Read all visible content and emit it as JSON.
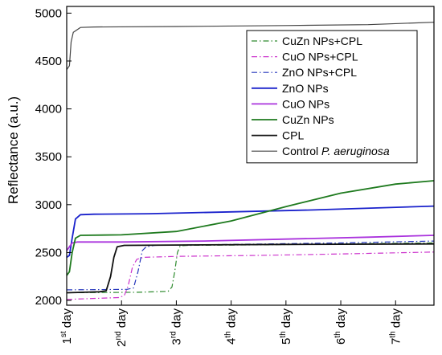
{
  "chart_data": {
    "type": "line",
    "ylabel": "Reflectance (a.u.)",
    "ylim": [
      1950,
      5070
    ],
    "xlim": [
      0,
      6.7
    ],
    "yticks": [
      2000,
      2500,
      3000,
      3500,
      4000,
      4500,
      5000
    ],
    "xticks": [
      {
        "value": 0,
        "num": "1",
        "sup": "st",
        "word": "day"
      },
      {
        "value": 1,
        "num": "2",
        "sup": "nd",
        "word": "day"
      },
      {
        "value": 2,
        "num": "3",
        "sup": "rd",
        "word": "day"
      },
      {
        "value": 3,
        "num": "4",
        "sup": "th",
        "word": "day"
      },
      {
        "value": 4,
        "num": "5",
        "sup": "th",
        "word": "day"
      },
      {
        "value": 5,
        "num": "6",
        "sup": "th",
        "word": "day"
      },
      {
        "value": 6,
        "num": "7",
        "sup": "th",
        "word": "day"
      }
    ],
    "legend_position": "top-right",
    "series": [
      {
        "name": "CuZn NPs+CPL",
        "italic": "",
        "color": "#2e8b2e",
        "dash": "dashdot",
        "width": 1.2,
        "points": [
          [
            0,
            2080
          ],
          [
            1.3,
            2085
          ],
          [
            1.85,
            2095
          ],
          [
            1.92,
            2140
          ],
          [
            1.97,
            2300
          ],
          [
            2.02,
            2500
          ],
          [
            2.07,
            2570
          ],
          [
            2.2,
            2575
          ],
          [
            3.5,
            2580
          ],
          [
            5.0,
            2590
          ],
          [
            6.7,
            2600
          ]
        ]
      },
      {
        "name": "CuO NPs+CPL",
        "italic": "",
        "color": "#cc33cc",
        "dash": "dashdot",
        "width": 1.2,
        "points": [
          [
            0,
            2010
          ],
          [
            0.95,
            2030
          ],
          [
            1.05,
            2050
          ],
          [
            1.12,
            2150
          ],
          [
            1.2,
            2350
          ],
          [
            1.28,
            2430
          ],
          [
            1.4,
            2450
          ],
          [
            2.0,
            2460
          ],
          [
            3.5,
            2470
          ],
          [
            5.0,
            2485
          ],
          [
            6.7,
            2505
          ]
        ]
      },
      {
        "name": "ZnO NPs+CPL",
        "italic": "",
        "color": "#2233bb",
        "dash": "dashdot",
        "width": 1.2,
        "points": [
          [
            0,
            2110
          ],
          [
            1.1,
            2115
          ],
          [
            1.22,
            2130
          ],
          [
            1.3,
            2300
          ],
          [
            1.38,
            2520
          ],
          [
            1.45,
            2560
          ],
          [
            1.6,
            2575
          ],
          [
            3.0,
            2585
          ],
          [
            5.0,
            2600
          ],
          [
            6.7,
            2620
          ]
        ]
      },
      {
        "name": "ZnO NPs",
        "italic": "",
        "color": "#1a22cc",
        "dash": "solid",
        "width": 1.8,
        "points": [
          [
            0,
            2450
          ],
          [
            0.05,
            2470
          ],
          [
            0.1,
            2650
          ],
          [
            0.16,
            2850
          ],
          [
            0.25,
            2895
          ],
          [
            0.5,
            2900
          ],
          [
            1.5,
            2905
          ],
          [
            3.0,
            2925
          ],
          [
            4.5,
            2945
          ],
          [
            6.7,
            2985
          ]
        ]
      },
      {
        "name": "CuO NPs",
        "italic": "",
        "color": "#aa33dd",
        "dash": "solid",
        "width": 1.8,
        "points": [
          [
            0,
            2520
          ],
          [
            0.05,
            2560
          ],
          [
            0.1,
            2600
          ],
          [
            0.2,
            2610
          ],
          [
            1.0,
            2610
          ],
          [
            2.5,
            2620
          ],
          [
            4.0,
            2640
          ],
          [
            5.5,
            2660
          ],
          [
            6.7,
            2680
          ]
        ]
      },
      {
        "name": "CuZn NPs",
        "italic": "",
        "color": "#1e7a1e",
        "dash": "solid",
        "width": 1.8,
        "points": [
          [
            0,
            2260
          ],
          [
            0.05,
            2300
          ],
          [
            0.1,
            2500
          ],
          [
            0.16,
            2650
          ],
          [
            0.25,
            2680
          ],
          [
            1.0,
            2685
          ],
          [
            2.0,
            2720
          ],
          [
            3.0,
            2830
          ],
          [
            4.0,
            2980
          ],
          [
            5.0,
            3120
          ],
          [
            6.0,
            3215
          ],
          [
            6.7,
            3250
          ]
        ]
      },
      {
        "name": "CPL",
        "italic": "",
        "color": "#111111",
        "dash": "solid",
        "width": 1.8,
        "points": [
          [
            0,
            2080
          ],
          [
            0.6,
            2090
          ],
          [
            0.72,
            2100
          ],
          [
            0.8,
            2250
          ],
          [
            0.86,
            2450
          ],
          [
            0.92,
            2560
          ],
          [
            1.05,
            2575
          ],
          [
            2.5,
            2580
          ],
          [
            4.0,
            2585
          ],
          [
            6.7,
            2590
          ]
        ]
      },
      {
        "name": "Control ",
        "italic": "P. aeruginosa",
        "color": "#444444",
        "dash": "solid",
        "width": 1.2,
        "points": [
          [
            0,
            4410
          ],
          [
            0.05,
            4450
          ],
          [
            0.08,
            4700
          ],
          [
            0.12,
            4800
          ],
          [
            0.25,
            4850
          ],
          [
            0.5,
            4855
          ],
          [
            2.0,
            4860
          ],
          [
            4.0,
            4870
          ],
          [
            5.5,
            4880
          ],
          [
            6.7,
            4905
          ]
        ]
      }
    ]
  }
}
